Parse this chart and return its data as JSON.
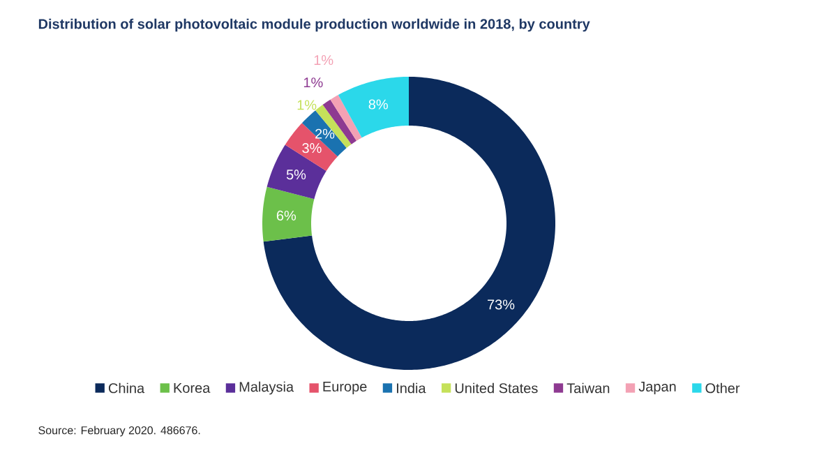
{
  "chart_data": {
    "type": "donut",
    "title": "Distribution of solar photovoltaic module production worldwide in 2018, by country",
    "categories": [
      "China",
      "Korea",
      "Malaysia",
      "Europe",
      "India",
      "United States",
      "Taiwan",
      "Japan",
      "Other"
    ],
    "values": [
      73,
      6,
      5,
      3,
      2,
      1,
      1,
      1,
      8
    ],
    "colors": [
      "#0b2a5b",
      "#6cc04a",
      "#5b2f9a",
      "#e5536b",
      "#1a72b0",
      "#c5e15a",
      "#8e3a91",
      "#f3a1b4",
      "#2bd8ea"
    ],
    "value_labels": [
      "73%",
      "6%",
      "5%",
      "3%",
      "2%",
      "1%",
      "1%",
      "1%",
      "8%"
    ],
    "legend": "bottom",
    "annotations": [
      "Source: February 2020. 486676."
    ]
  }
}
